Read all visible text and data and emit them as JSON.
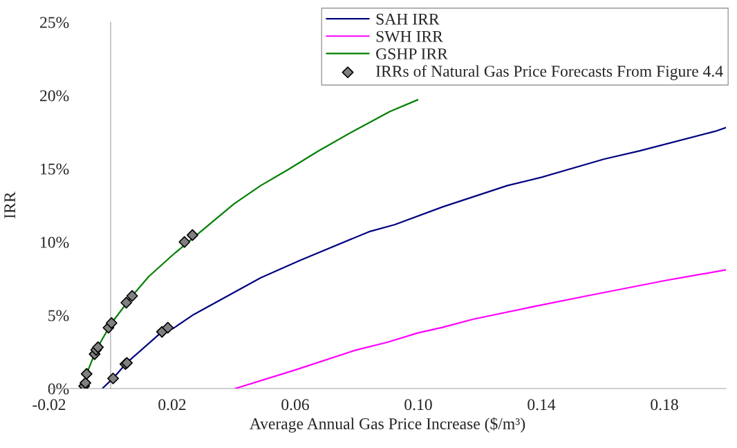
{
  "chart_data": {
    "type": "line",
    "xlabel": "Average Annual Gas Price Increase ($/m³)",
    "ylabel": "IRR",
    "xlim": [
      -0.02,
      0.2
    ],
    "ylim": [
      0,
      25
    ],
    "xticks": [
      {
        "value": -0.02,
        "label": "-0.02"
      },
      {
        "value": 0.02,
        "label": "0.02"
      },
      {
        "value": 0.06,
        "label": "0.06"
      },
      {
        "value": 0.1,
        "label": "0.10"
      },
      {
        "value": 0.14,
        "label": "0.14"
      },
      {
        "value": 0.18,
        "label": "0.18"
      }
    ],
    "yticks": [
      {
        "value": 0,
        "label": "0%"
      },
      {
        "value": 5,
        "label": "5%"
      },
      {
        "value": 10,
        "label": "10%"
      },
      {
        "value": 15,
        "label": "15%"
      },
      {
        "value": 20,
        "label": "20%"
      },
      {
        "value": 25,
        "label": "25%"
      }
    ],
    "grid": false,
    "legend": "top right",
    "marker": "none",
    "line_style": "solid",
    "series": [
      {
        "name": "SAH IRR",
        "color": "#000080",
        "x": [
          -0.0027,
          0.0008,
          0.0052,
          0.0167,
          0.0203,
          0.027,
          0.0488,
          0.0615,
          0.084,
          0.0923,
          0.108,
          0.129,
          0.1403,
          0.1605,
          0.1718,
          0.1965,
          0.2
        ],
        "values": [
          0,
          0.7,
          1.75,
          3.87,
          4.1,
          5.05,
          7.56,
          8.74,
          10.7,
          11.18,
          12.4,
          13.85,
          14.43,
          15.66,
          16.21,
          17.55,
          17.8
        ]
      },
      {
        "name": "SWH IRR",
        "color": "#ff00ff",
        "x": [
          0.0405,
          0.06,
          0.0795,
          0.09,
          0.0998,
          0.108,
          0.1178,
          0.1395,
          0.1545,
          0.18,
          0.1868,
          0.2
        ],
        "values": [
          0,
          1.27,
          2.61,
          3.16,
          3.79,
          4.18,
          4.73,
          5.68,
          6.31,
          7.36,
          7.61,
          8.1
        ]
      },
      {
        "name": "GSHP IRR",
        "color": "#008000",
        "x": [
          -0.0087,
          -0.0078,
          -0.0047,
          0.0003,
          0.007,
          0.0124,
          0.0203,
          0.0401,
          0.0488,
          0.0578,
          0.0675,
          0.0788,
          0.0908,
          0.0998
        ],
        "values": [
          0,
          1.0,
          2.64,
          4.47,
          6.32,
          7.64,
          9.14,
          12.6,
          13.85,
          14.95,
          16.2,
          17.55,
          18.9,
          19.7
        ]
      },
      {
        "name": "IRRs of Natural Gas Price Forecasts From Figure 4.4",
        "type": "scatter",
        "marker": "diamond",
        "color": "#808080",
        "x": [
          -0.0086,
          -0.0082,
          -0.0078,
          -0.0052,
          -0.0047,
          -0.0041,
          -0.0007,
          0.0003,
          0.0051,
          0.007,
          0.024,
          0.0266,
          0.0008,
          0.0048,
          0.0053,
          0.0167,
          0.0186
        ],
        "values": [
          0.17,
          0.38,
          1.0,
          2.35,
          2.64,
          2.82,
          4.15,
          4.47,
          5.86,
          6.32,
          10.0,
          10.47,
          0.69,
          1.67,
          1.75,
          3.87,
          4.15
        ]
      }
    ]
  }
}
